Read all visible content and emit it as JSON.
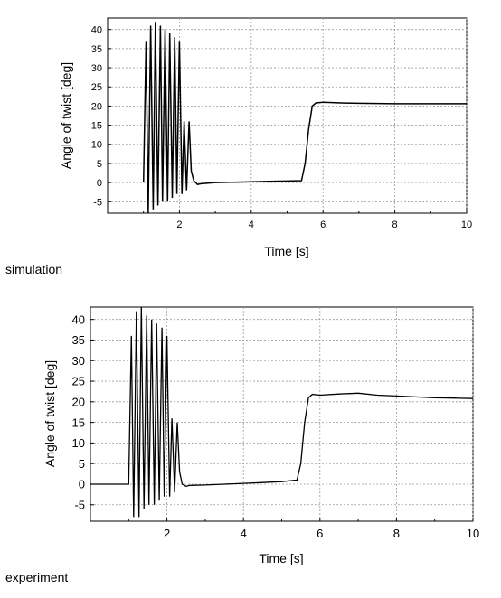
{
  "figure": {
    "captions": [
      "simulation",
      "experiment"
    ]
  },
  "chart_data": [
    {
      "type": "line",
      "title": "",
      "xlabel": "Time [s]",
      "ylabel": "Angle of twist [deg]",
      "xlim": [
        0,
        10
      ],
      "ylim": [
        -8,
        43
      ],
      "xticks": [
        "2",
        "4",
        "6",
        "8",
        "10"
      ],
      "yticks": [
        "40",
        "35",
        "30",
        "25",
        "20",
        "15",
        "10",
        "5",
        "0",
        "-5"
      ],
      "grid": true,
      "series": [
        {
          "x": [
            1.0,
            1.07,
            1.13,
            1.2,
            1.27,
            1.33,
            1.4,
            1.47,
            1.53,
            1.6,
            1.67,
            1.73,
            1.8,
            1.87,
            1.93,
            2.0,
            2.07,
            2.13,
            2.2,
            2.27,
            2.33,
            2.4,
            2.5,
            2.6,
            3.0,
            3.5,
            4.0,
            4.5,
            5.0,
            5.4,
            5.5,
            5.6,
            5.7,
            5.8,
            6.0,
            6.5,
            7.0,
            8.0,
            9.0,
            10.0
          ],
          "y": [
            0,
            37,
            -8,
            41,
            -7,
            42,
            -6,
            41,
            -5,
            40,
            -5,
            39,
            -4,
            38,
            -3,
            37,
            -3,
            16,
            -2,
            16,
            3,
            0.5,
            -0.5,
            -0.3,
            0,
            0.1,
            0.2,
            0.3,
            0.4,
            0.5,
            5,
            14,
            20,
            20.8,
            21,
            20.8,
            20.7,
            20.6,
            20.6,
            20.6
          ]
        }
      ]
    },
    {
      "type": "line",
      "title": "",
      "xlabel": "Time [s]",
      "ylabel": "Angle of twist [deg]",
      "xlim": [
        0,
        10
      ],
      "ylim": [
        -9,
        43
      ],
      "xticks": [
        "2",
        "4",
        "6",
        "8",
        "10"
      ],
      "yticks": [
        "40",
        "35",
        "30",
        "25",
        "20",
        "15",
        "10",
        "5",
        "0",
        "-5"
      ],
      "grid": true,
      "series": [
        {
          "x": [
            0,
            1.0,
            1.07,
            1.13,
            1.2,
            1.27,
            1.33,
            1.4,
            1.47,
            1.53,
            1.6,
            1.67,
            1.73,
            1.8,
            1.87,
            1.93,
            2.0,
            2.07,
            2.13,
            2.2,
            2.27,
            2.33,
            2.4,
            2.5,
            2.6,
            3.0,
            3.5,
            4.0,
            4.5,
            5.0,
            5.4,
            5.5,
            5.6,
            5.7,
            5.8,
            6.0,
            6.5,
            7.0,
            7.5,
            8.0,
            8.5,
            9.0,
            9.5,
            10.0
          ],
          "y": [
            0,
            0,
            36,
            -8,
            42,
            -8,
            43,
            -6,
            41,
            -5,
            40,
            -5,
            39,
            -4,
            38,
            -3,
            36,
            -3,
            16,
            -2,
            15,
            3,
            0,
            -0.5,
            -0.3,
            -0.2,
            0,
            0.2,
            0.4,
            0.6,
            1.0,
            5,
            15,
            21,
            21.8,
            21.6,
            21.9,
            22.1,
            21.6,
            21.4,
            21.2,
            21.0,
            20.9,
            20.8
          ]
        }
      ]
    }
  ]
}
